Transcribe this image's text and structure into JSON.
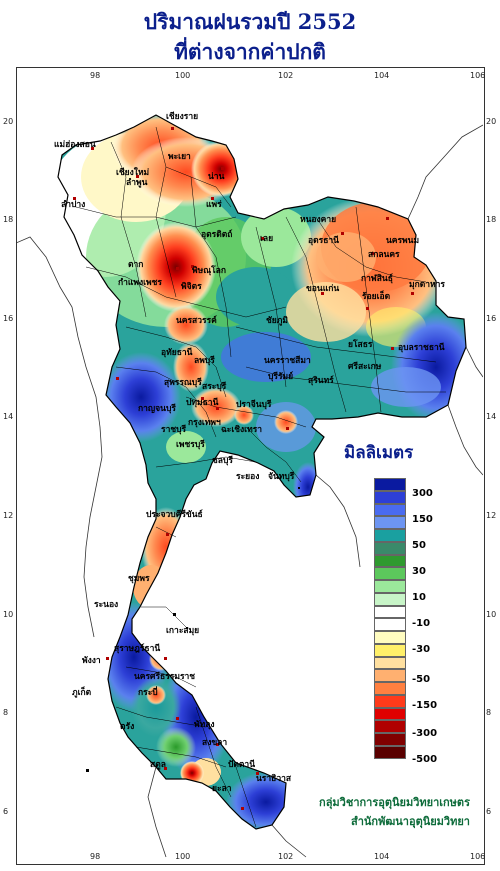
{
  "title_line1": "ปริมาณฝนรวมปี  2552",
  "title_line2": "ที่ต่างจากค่าปกติ",
  "lon_ticks": [
    "98",
    "100",
    "102",
    "104",
    "106"
  ],
  "lat_ticks": [
    "20",
    "18",
    "16",
    "14",
    "12",
    "10",
    "8",
    "6"
  ],
  "legend": {
    "title": "มิลลิเมตร",
    "labels": [
      "300",
      "150",
      "50",
      "30",
      "10",
      "-10",
      "-30",
      "-50",
      "-150",
      "-300",
      "-500"
    ],
    "colors": [
      "#0a1aa0",
      "#2d3fd6",
      "#4a6bf0",
      "#6d95f2",
      "#1aa0a0",
      "#3a8a6a",
      "#2f9a2f",
      "#5cc85c",
      "#9be89b",
      "#c8f5c8",
      "#ffffff",
      "#ffffff",
      "#fffcc0",
      "#fff06a",
      "#ffe0a0",
      "#ffb070",
      "#ff8040",
      "#ff3a1a",
      "#e00000",
      "#b00000",
      "#800000",
      "#5a0000"
    ]
  },
  "credit_line1": "กลุ่มวิชาการอุตุนิยมวิทยาเกษตร",
  "credit_line2": "สำนักพัฒนาอุตุนิยมวิทยา",
  "places": [
    "เชียงราย",
    "แม่ฮ่องสอน",
    "พะเยา",
    "เชียงใหม่",
    "น่าน",
    "ลำพูน",
    "แพร่",
    "ลำปาง",
    "หนองคาย",
    "อุดรธานี",
    "นครพนม",
    "สกลนคร",
    "เลย",
    "อุตรดิตถ์",
    "ตาก",
    "พิษณุโลก",
    "กาฬสินธุ์",
    "มุกดาหาร",
    "กำแพงเพชร",
    "พิจิตร",
    "ขอนแก่น",
    "ร้อยเอ็ด",
    "นครสวรรค์",
    "ชัยภูมิ",
    "ยโสธร",
    "อุบลราชธานี",
    "อุทัยธานี",
    "ลพบุรี",
    "นครราชสีมา",
    "สุรินทร์",
    "ศรีสะเกษ",
    "สุพรรณบุรี",
    "สระบุรี",
    "บุรีรัมย์",
    "กาญจนบุรี",
    "ปทุมธานี",
    "ปราจีนบุรี",
    "กรุงเทพฯ",
    "ราชบุรี",
    "ฉะเชิงเทรา",
    "เพชรบุรี",
    "ชลบุรี",
    "ระยอง",
    "จันทบุรี",
    "ประจวบคีรีขันธ์",
    "ชุมพร",
    "ระนอง",
    "เกาะสมุย",
    "สุราษฎร์ธานี",
    "พังงา",
    "นครศรีธรรมราช",
    "ภูเก็ต",
    "กระบี่",
    "ตรัง",
    "พัทลุง",
    "สงขลา",
    "สตูล",
    "ปัตตานี",
    "นราธิวาส",
    "ยะลา"
  ]
}
